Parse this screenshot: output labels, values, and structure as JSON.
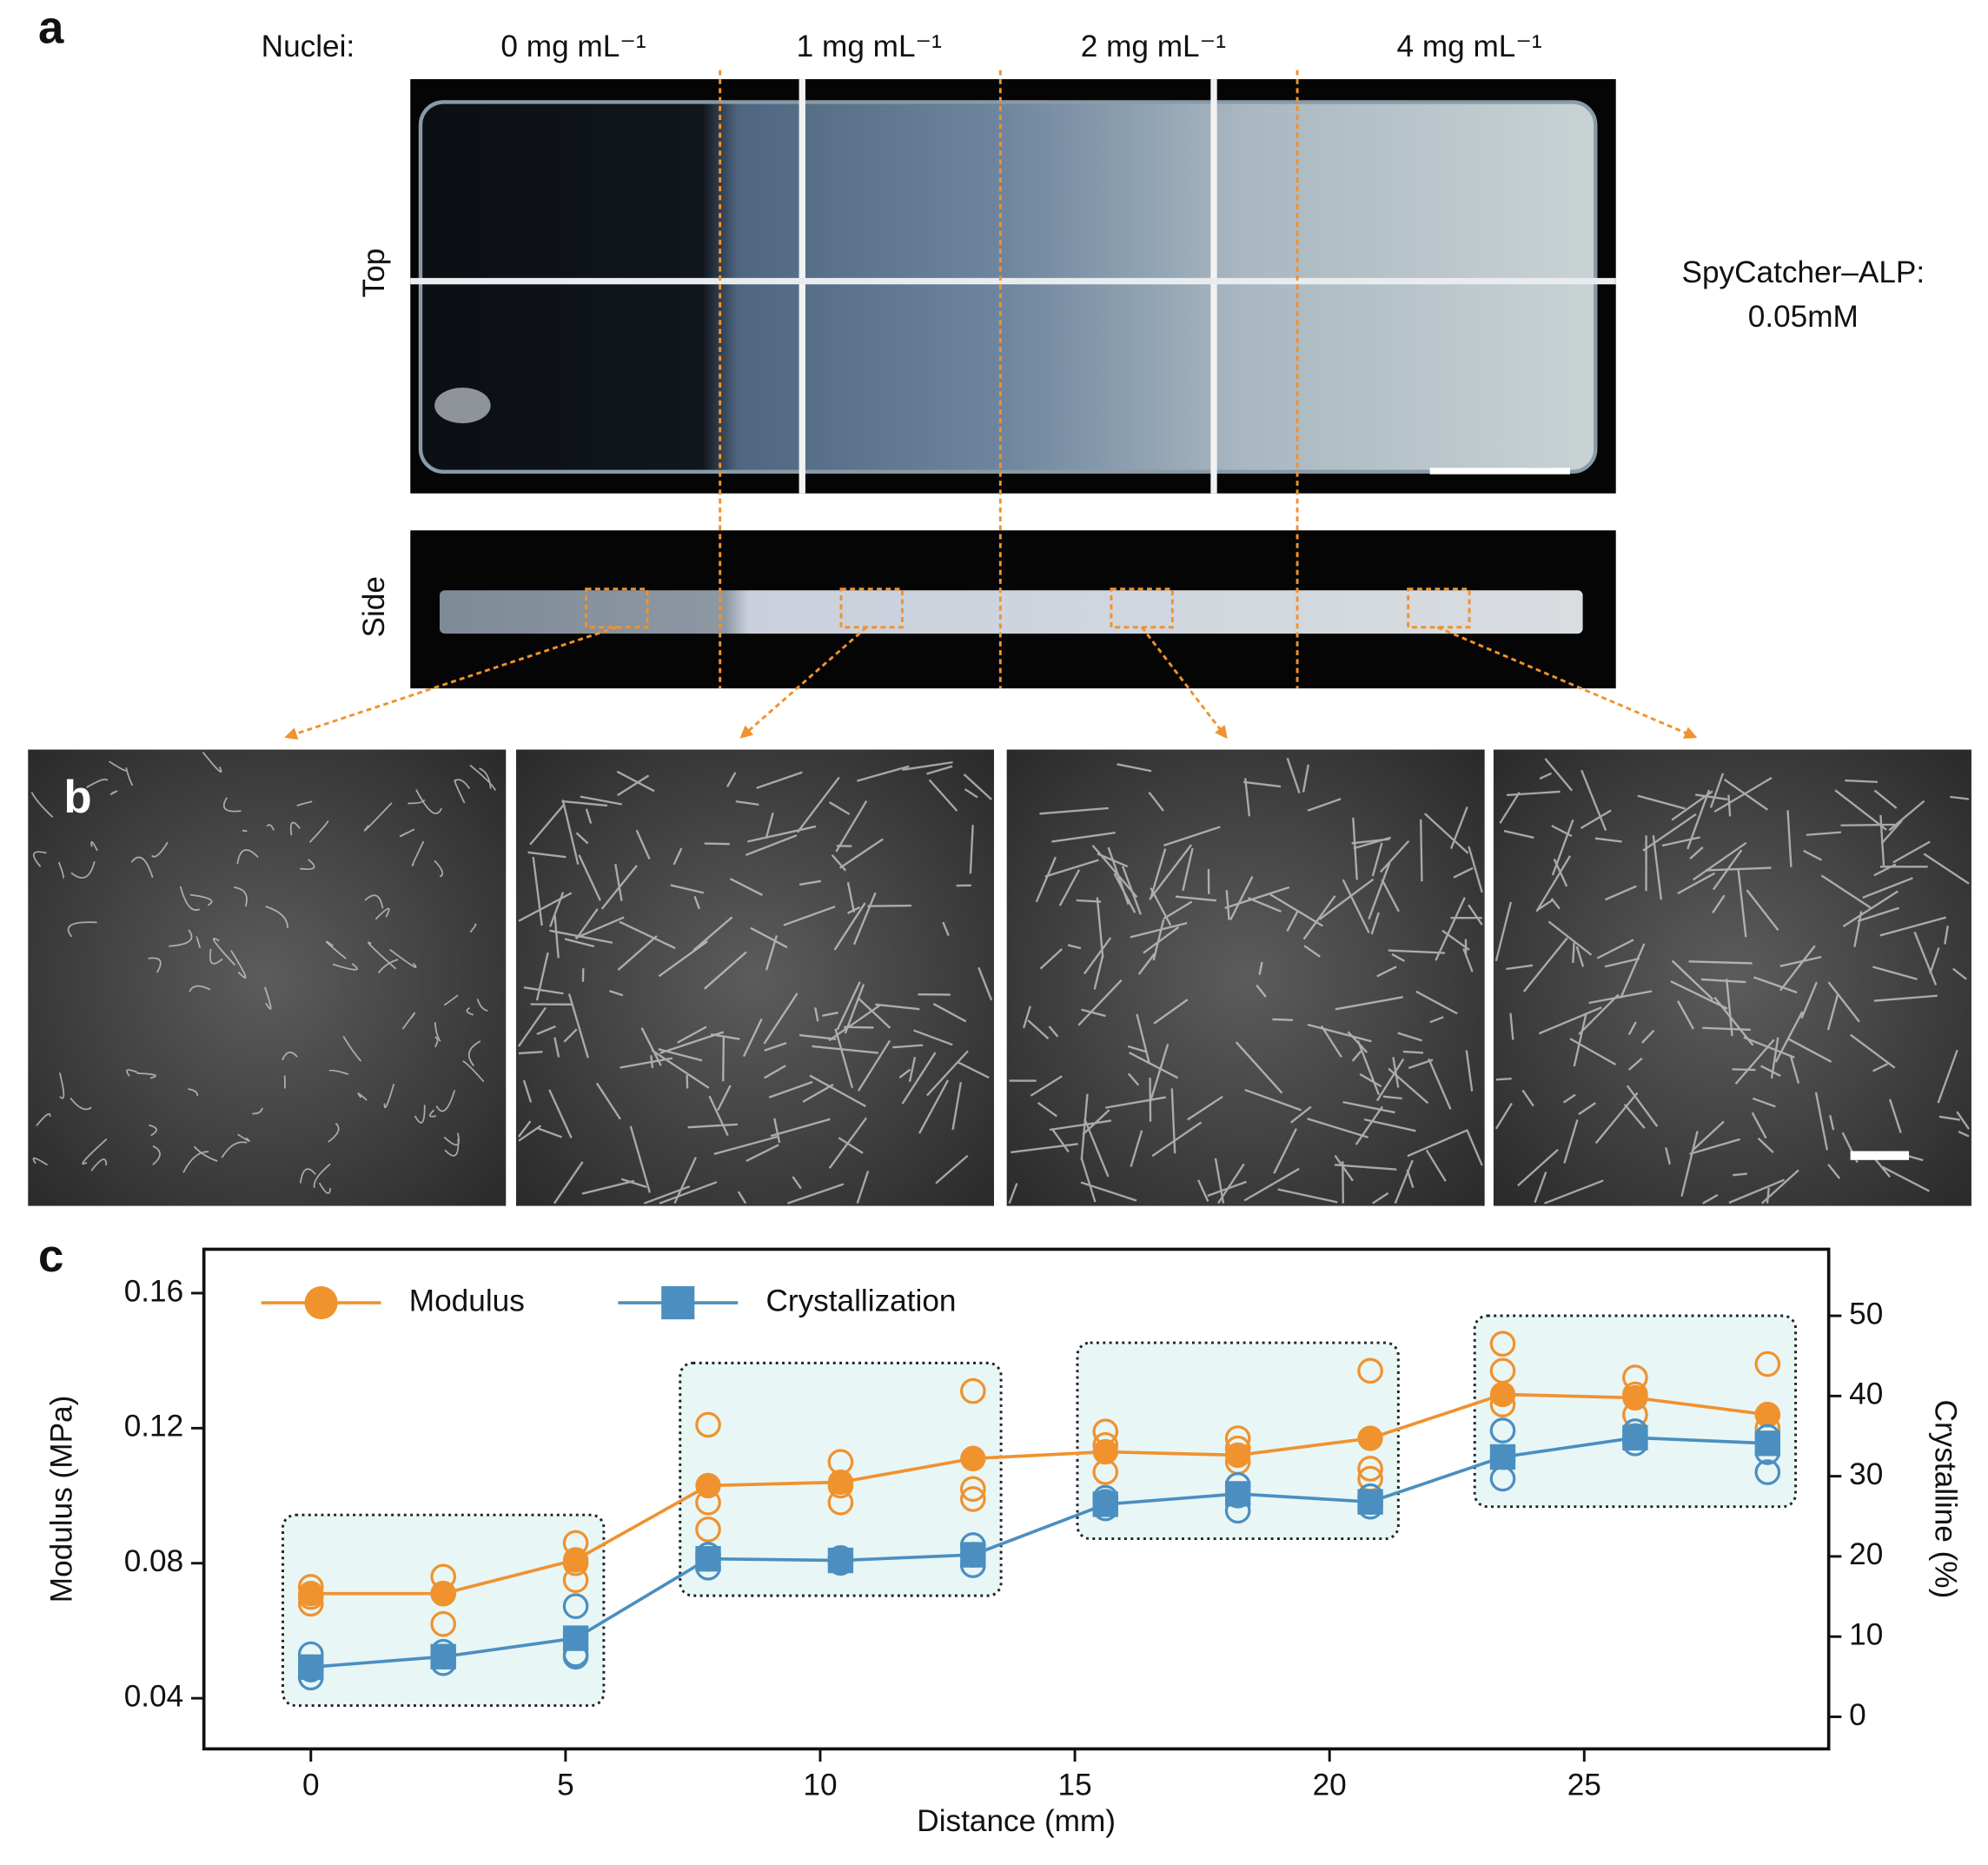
{
  "panel_a": {
    "label": "a",
    "nuclei_title": "Nuclei:",
    "concentrations": [
      "0 mg mL⁻¹",
      "1 mg mL⁻¹",
      "2 mg mL⁻¹",
      "4 mg mL⁻¹"
    ],
    "views": [
      "Top",
      "Side"
    ],
    "enzyme": [
      "SpyCatcher–ALP:",
      "0.05mM"
    ]
  },
  "panel_b": {
    "label": "b"
  },
  "panel_c": {
    "label": "c"
  },
  "chart_data": {
    "type": "line",
    "x_label": "Distance (mm)",
    "y_label": "Modulus (MPa)",
    "y2_label": "Crystalline (%)",
    "x": [
      0,
      2.6,
      5.2,
      7.8,
      10.4,
      13,
      15.6,
      18.2,
      20.8,
      23.4,
      26,
      28.6
    ],
    "xlim": [
      -2.1,
      29.8
    ],
    "xticks": [
      0,
      5,
      10,
      15,
      20,
      25
    ],
    "ylim": [
      0.025,
      0.173
    ],
    "yticks": [
      0.04,
      0.08,
      0.12,
      0.16
    ],
    "y2lim": [
      -4,
      58.3
    ],
    "y2ticks": [
      0,
      10,
      20,
      30,
      40,
      50
    ],
    "legend": "upper left",
    "series": [
      {
        "name": "Modulus",
        "color": "#f0922e",
        "marker": "circle",
        "values": [
          0.071,
          0.071,
          0.081,
          0.103,
          0.104,
          0.111,
          0.113,
          0.112,
          0.117,
          0.13,
          0.129,
          0.124
        ],
        "replicates": [
          [
            0.073,
            0.07,
            0.068
          ],
          [
            0.076,
            0.071,
            0.062
          ],
          [
            0.086,
            0.08,
            0.075
          ],
          [
            0.121,
            0.098,
            0.09
          ],
          [
            0.11,
            0.103,
            0.098
          ],
          [
            0.131,
            0.102,
            0.099
          ],
          [
            0.119,
            0.115,
            0.107
          ],
          [
            0.117,
            0.114,
            0.11
          ],
          [
            0.137,
            0.108,
            0.105
          ],
          [
            0.145,
            0.137,
            0.127
          ],
          [
            0.135,
            0.13,
            0.124
          ],
          [
            0.139,
            0.124,
            0.12
          ]
        ]
      },
      {
        "name": "Crystallization",
        "color": "#4a8fc0",
        "marker": "square",
        "axis": "y2",
        "values": [
          6.2,
          7.5,
          9.8,
          19.7,
          19.5,
          20.2,
          26.5,
          27.8,
          26.8,
          32.4,
          34.8,
          34.1
        ],
        "replicates": [
          [
            7.8,
            5.9,
            4.9
          ],
          [
            8.1,
            6.7,
            7.5
          ],
          [
            13.8,
            7.8,
            7.5
          ],
          [
            20.2,
            18.6,
            19.7
          ],
          [
            19.5,
            19.8,
            19.2
          ],
          [
            21.4,
            18.9,
            20.2
          ],
          [
            27.3,
            26.0,
            26.8
          ],
          [
            28.9,
            25.7,
            27.6
          ],
          [
            27.5,
            26.2,
            26.8
          ],
          [
            35.7,
            29.7,
            32.4
          ],
          [
            35.6,
            34.1,
            35.0
          ],
          [
            34.9,
            30.5,
            33.0
          ]
        ]
      }
    ]
  }
}
